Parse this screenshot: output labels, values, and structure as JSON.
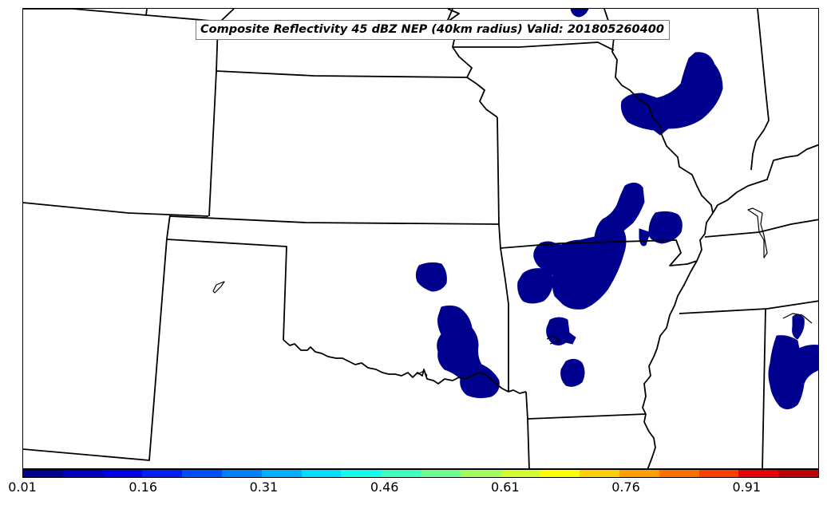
{
  "title": "Composite Reflectivity 45 dBZ NEP (40km radius) Valid: 201805260400",
  "colors": {
    "reflectivity_fill": "#00008F",
    "boundary": "#000000",
    "background": "#FFFFFF"
  },
  "colorbar": {
    "colormap": "jet",
    "range": [
      0.01,
      1.0
    ],
    "segment_colors": [
      "#00008F",
      "#0000BF",
      "#0000EF",
      "#001FFF",
      "#004FFF",
      "#007FFF",
      "#00AFFF",
      "#00DFFF",
      "#0FFFEF",
      "#3FFFBF",
      "#6FFF8F",
      "#9FFF5F",
      "#CFFF2F",
      "#FFFF00",
      "#FFCF00",
      "#FF9F00",
      "#FF6F00",
      "#FF3F00",
      "#EF0000",
      "#BF0000"
    ],
    "tick_labels": [
      "0.01",
      "0.16",
      "0.31",
      "0.46",
      "0.61",
      "0.76",
      "0.91"
    ]
  }
}
